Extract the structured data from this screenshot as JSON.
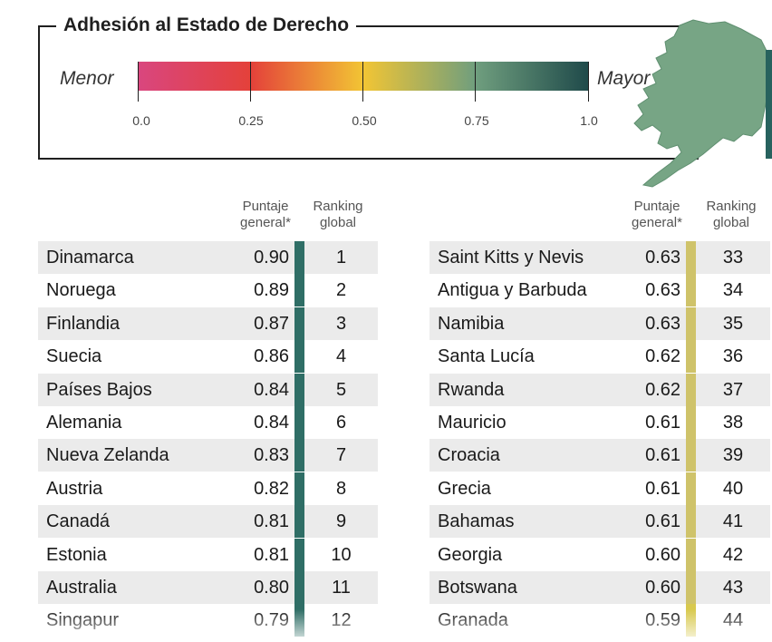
{
  "legend": {
    "title": "Adhesión al Estado de Derecho",
    "low_label": "Menor",
    "high_label": "Mayor",
    "ticks": [
      "0.0",
      "0.25",
      "0.50",
      "0.75",
      "1.0"
    ]
  },
  "headers": {
    "score": [
      "Puntaje",
      "general*"
    ],
    "rank": [
      "Ranking",
      "global"
    ]
  },
  "colors": {
    "left_strip": "#2f6e66",
    "right_strip": "#cfc36a",
    "right_strip_low": "#d8c94e"
  },
  "left_table": [
    {
      "country": "Dinamarca",
      "score": "0.90",
      "rank": "1"
    },
    {
      "country": "Noruega",
      "score": "0.89",
      "rank": "2"
    },
    {
      "country": "Finlandia",
      "score": "0.87",
      "rank": "3"
    },
    {
      "country": "Suecia",
      "score": "0.86",
      "rank": "4"
    },
    {
      "country": "Países Bajos",
      "score": "0.84",
      "rank": "5"
    },
    {
      "country": "Alemania",
      "score": "0.84",
      "rank": "6"
    },
    {
      "country": "Nueva Zelanda",
      "score": "0.83",
      "rank": "7"
    },
    {
      "country": "Austria",
      "score": "0.82",
      "rank": "8"
    },
    {
      "country": "Canadá",
      "score": "0.81",
      "rank": "9"
    },
    {
      "country": "Estonia",
      "score": "0.81",
      "rank": "10"
    },
    {
      "country": "Australia",
      "score": "0.80",
      "rank": "11"
    },
    {
      "country": "Singapur",
      "score": "0.79",
      "rank": "12"
    }
  ],
  "right_table": [
    {
      "country": "Saint Kitts y Nevis",
      "score": "0.63",
      "rank": "33"
    },
    {
      "country": "Antigua y Barbuda",
      "score": "0.63",
      "rank": "34"
    },
    {
      "country": "Namibia",
      "score": "0.63",
      "rank": "35"
    },
    {
      "country": "Santa Lucía",
      "score": "0.62",
      "rank": "36"
    },
    {
      "country": "Rwanda",
      "score": "0.62",
      "rank": "37"
    },
    {
      "country": "Mauricio",
      "score": "0.61",
      "rank": "38"
    },
    {
      "country": "Croacia",
      "score": "0.61",
      "rank": "39"
    },
    {
      "country": "Grecia",
      "score": "0.61",
      "rank": "40"
    },
    {
      "country": "Bahamas",
      "score": "0.61",
      "rank": "41"
    },
    {
      "country": "Georgia",
      "score": "0.60",
      "rank": "42"
    },
    {
      "country": "Botswana",
      "score": "0.60",
      "rank": "43"
    },
    {
      "country": "Granada",
      "score": "0.59",
      "rank": "44"
    }
  ]
}
